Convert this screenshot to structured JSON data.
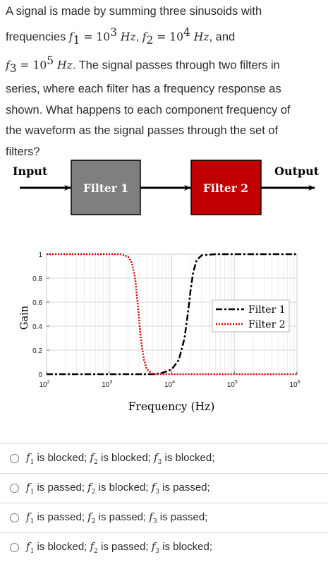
{
  "question": {
    "line1": "A signal is made by summing three sinusoids with",
    "line2_pre": "frequencies ",
    "f1": "f",
    "f1_sub": "1",
    "f1_val": " = 10",
    "f1_exp": "3",
    "unit": " Hz",
    "sep": ", ",
    "f2": "f",
    "f2_sub": "2",
    "f2_val": " = 10",
    "f2_exp": "4",
    "line2_post": ", and",
    "f3": "f",
    "f3_sub": "3",
    "f3_val": " = 10",
    "f3_exp": "5",
    "line3_post": ". The signal passes through two filters in",
    "line4": "series, where each filter has a frequency response as",
    "line5": "shown. What happens to each component frequency of",
    "line6": "the waveform as the signal passes through the set of",
    "line7": "filters?"
  },
  "diagram": {
    "input_label": "Input",
    "filter1_label": "Filter 1",
    "filter2_label": "Filter 2",
    "output_label": "Output",
    "filter1_color": "#7f7f7f",
    "filter2_color": "#c00000"
  },
  "chart_data": {
    "type": "line",
    "xscale": "log",
    "xlim": [
      100,
      1000000
    ],
    "ylim": [
      0,
      1
    ],
    "xlabel": "Frequency (Hz)",
    "ylabel": "Gain",
    "xticks": [
      "10",
      "10",
      "10",
      "10",
      "10"
    ],
    "xtick_exps": [
      "2",
      "3",
      "4",
      "5",
      "6"
    ],
    "yticks": [
      "0",
      "0.2",
      "0.4",
      "0.6",
      "0.8",
      "1"
    ],
    "legend_position": "right",
    "grid": true,
    "series": [
      {
        "name": "Filter 1",
        "color": "#000000",
        "style": "dashdot",
        "x": [
          100,
          5000,
          7000,
          10000,
          13000,
          16000,
          18000,
          20000,
          22000,
          25000,
          30000,
          50000,
          1000000
        ],
        "y": [
          0,
          0,
          0.01,
          0.04,
          0.12,
          0.3,
          0.5,
          0.7,
          0.85,
          0.95,
          0.99,
          1,
          1
        ]
      },
      {
        "name": "Filter 2",
        "color": "#e00000",
        "style": "dotted",
        "x": [
          100,
          1500,
          2000,
          2300,
          2600,
          2900,
          3200,
          3600,
          4000,
          5000,
          20000,
          1000000
        ],
        "y": [
          1,
          1,
          0.98,
          0.93,
          0.8,
          0.55,
          0.3,
          0.12,
          0.04,
          0,
          0,
          0
        ]
      }
    ]
  },
  "options": [
    {
      "parts": [
        [
          "f",
          "1",
          " is blocked; "
        ],
        [
          "f",
          "2",
          " is blocked; "
        ],
        [
          "f",
          "3",
          " is blocked;"
        ]
      ]
    },
    {
      "parts": [
        [
          "f",
          "1",
          " is passed; "
        ],
        [
          "f",
          "2",
          " is blocked; "
        ],
        [
          "f",
          "3",
          " is passed;"
        ]
      ]
    },
    {
      "parts": [
        [
          "f",
          "1",
          " is passed; "
        ],
        [
          "f",
          "2",
          " is passed; "
        ],
        [
          "f",
          "3",
          " is passed;"
        ]
      ]
    },
    {
      "parts": [
        [
          "f",
          "1",
          " is blocked; "
        ],
        [
          "f",
          "2",
          " is passed; "
        ],
        [
          "f",
          "3",
          " is blocked;"
        ]
      ]
    }
  ]
}
